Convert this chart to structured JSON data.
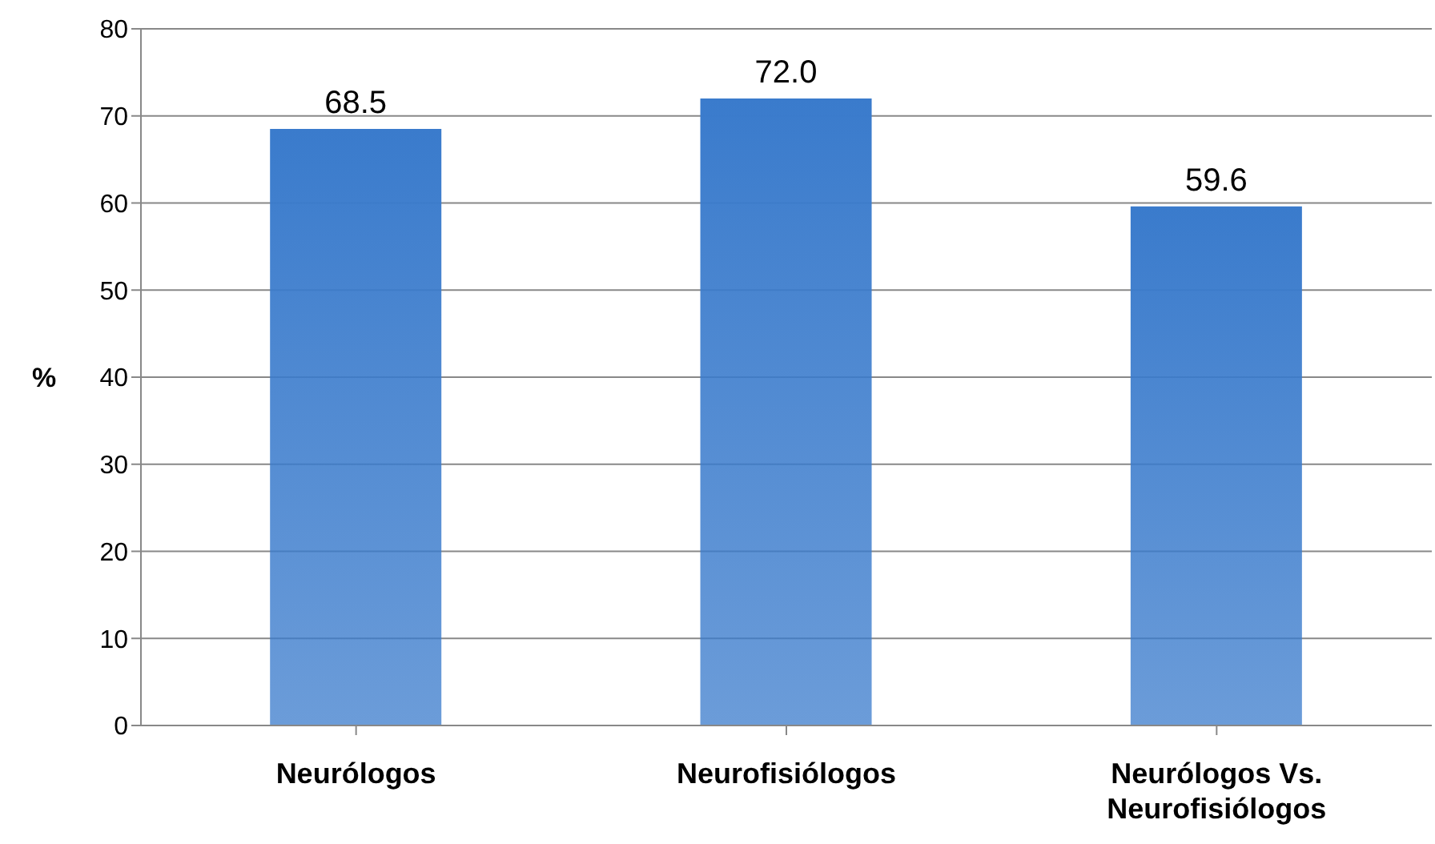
{
  "chart_data": {
    "type": "bar",
    "ylabel": "%",
    "categories": [
      "Neurólogos",
      "Neurofisiólogos",
      "Neurólogos Vs. Neurofisiólogos"
    ],
    "values": [
      68.5,
      72.0,
      59.6
    ],
    "value_labels": [
      "68.5",
      "72.0",
      "59.6"
    ],
    "color": "#3a7bcc",
    "ylim": [
      0,
      80
    ],
    "yticks": [
      0,
      10,
      20,
      30,
      40,
      50,
      60,
      70,
      80
    ],
    "grid": "y"
  }
}
